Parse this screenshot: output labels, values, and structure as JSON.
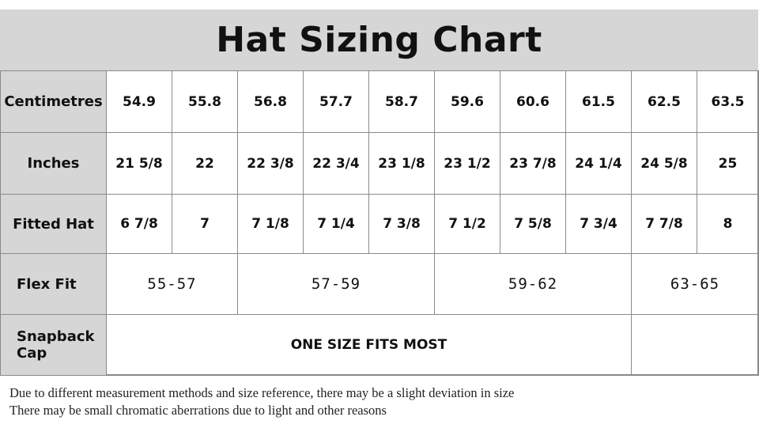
{
  "title": "Hat Sizing Chart",
  "rows": {
    "centimetres": {
      "label": "Centimetres",
      "values": [
        "54.9",
        "55.8",
        "56.8",
        "57.7",
        "58.7",
        "59.6",
        "60.6",
        "61.5",
        "62.5",
        "63.5"
      ]
    },
    "inches": {
      "label": "Inches",
      "values": [
        "21 5/8",
        "22",
        "22 3/8",
        "22 3/4",
        "23 1/8",
        "23 1/2",
        "23 7/8",
        "24 1/4",
        "24 5/8",
        "25"
      ]
    },
    "fitted": {
      "label": "Fitted Hat",
      "values": [
        "6 7/8",
        "7",
        "7 1/8",
        "7 1/4",
        "7 3/8",
        "7 1/2",
        "7 5/8",
        "7 3/4",
        "7 7/8",
        "8"
      ]
    },
    "flex": {
      "label": "Flex Fit",
      "values": [
        "55-57",
        "57-59",
        "59-62",
        "63-65"
      ]
    },
    "snapback": {
      "label_line1": "Snapback",
      "label_line2": "Cap",
      "value": "ONE SIZE FITS MOST"
    }
  },
  "notes": [
    "Due to different measurement methods and size reference, there may be a slight deviation in size",
    "There may be small chromatic aberrations due to light and other reasons"
  ]
}
